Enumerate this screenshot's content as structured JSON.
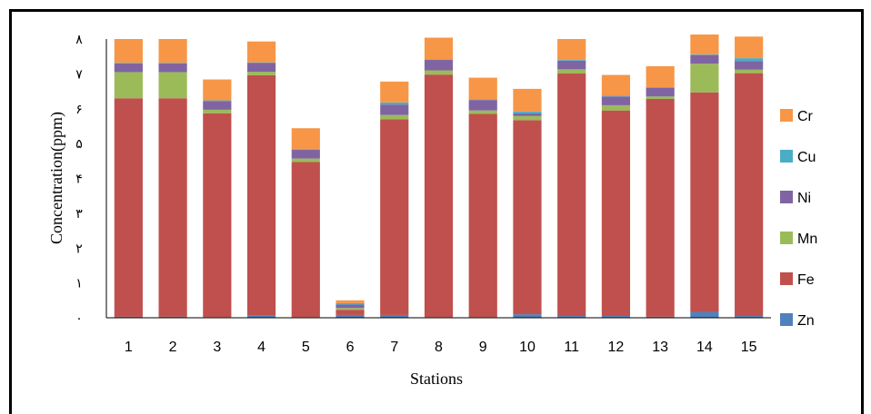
{
  "chart_data": {
    "type": "bar",
    "stacked": true,
    "xlabel": "Stations",
    "ylabel": "Concentration(ppm)",
    "ylim": [
      0,
      8
    ],
    "ytick_labels": [
      "٠",
      "١",
      "٢",
      "٣",
      "۴",
      "۵",
      "۶",
      "٧",
      "٨"
    ],
    "categories": [
      "1",
      "2",
      "3",
      "4",
      "5",
      "6",
      "7",
      "8",
      "9",
      "10",
      "11",
      "12",
      "13",
      "14",
      "15"
    ],
    "legend_position": "right",
    "series": [
      {
        "name": "Zn",
        "color": "#4F81BD",
        "values": [
          0.03,
          0.03,
          0.02,
          0.06,
          0.02,
          0.08,
          0.08,
          0.02,
          0.02,
          0.1,
          0.05,
          0.05,
          0.03,
          0.17,
          0.05
        ]
      },
      {
        "name": "Fe",
        "color": "#C0504D",
        "values": [
          6.27,
          6.27,
          5.85,
          6.9,
          4.45,
          0.15,
          5.62,
          6.96,
          5.83,
          5.57,
          6.96,
          5.9,
          6.25,
          6.3,
          6.97
        ]
      },
      {
        "name": "Mn",
        "color": "#9BBB59",
        "values": [
          0.75,
          0.75,
          0.1,
          0.1,
          0.1,
          0.05,
          0.12,
          0.12,
          0.1,
          0.12,
          0.12,
          0.15,
          0.07,
          0.82,
          0.1
        ]
      },
      {
        "name": "Ni",
        "color": "#8064A2",
        "values": [
          0.25,
          0.25,
          0.25,
          0.25,
          0.25,
          0.1,
          0.3,
          0.3,
          0.3,
          0.08,
          0.25,
          0.25,
          0.25,
          0.25,
          0.25
        ]
      },
      {
        "name": "Cu",
        "color": "#4BACC6",
        "values": [
          0.02,
          0.02,
          0.02,
          0.02,
          0.02,
          0.04,
          0.06,
          0.02,
          0.02,
          0.05,
          0.02,
          0.02,
          0.02,
          0.02,
          0.08
        ]
      },
      {
        "name": "Cr",
        "color": "#F79646",
        "values": [
          0.68,
          0.68,
          0.6,
          0.6,
          0.6,
          0.08,
          0.6,
          0.62,
          0.62,
          0.65,
          0.6,
          0.6,
          0.6,
          0.57,
          0.62
        ]
      }
    ]
  }
}
